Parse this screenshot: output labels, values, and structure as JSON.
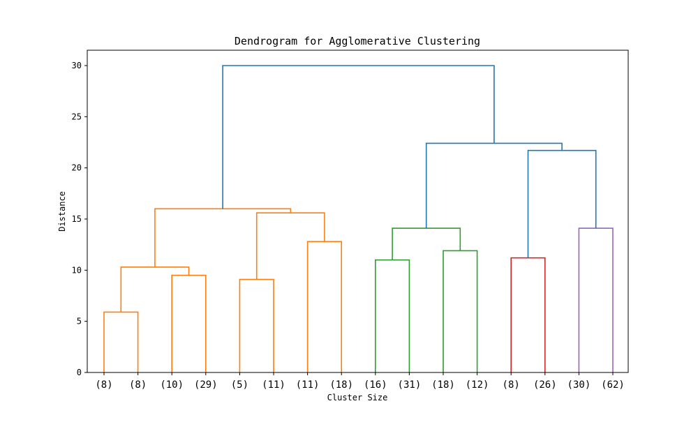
{
  "chart_data": {
    "type": "dendrogram",
    "title": "Dendrogram for Agglomerative Clustering",
    "xlabel": "Cluster Size",
    "ylabel": "Distance",
    "ylim": [
      0,
      31.5
    ],
    "yticks": [
      0,
      5,
      10,
      15,
      20,
      25,
      30
    ],
    "leaf_labels": [
      "(8)",
      "(8)",
      "(10)",
      "(29)",
      "(5)",
      "(11)",
      "(11)",
      "(18)",
      "(16)",
      "(31)",
      "(18)",
      "(12)",
      "(8)",
      "(26)",
      "(30)",
      "(62)"
    ],
    "colors": {
      "orange": "#ff7f0e",
      "green": "#2ca02c",
      "red": "#d62728",
      "purple": "#9467bd",
      "blue": "#1f77b4"
    },
    "links": [
      {
        "left": 0,
        "right": 1,
        "height": 5.9,
        "color": "orange"
      },
      {
        "left": 2,
        "right": 3,
        "height": 9.5,
        "color": "orange"
      },
      {
        "left": 16,
        "right": 17,
        "height": 10.3,
        "color": "orange"
      },
      {
        "left": 4,
        "right": 5,
        "height": 9.1,
        "color": "orange"
      },
      {
        "left": 6,
        "right": 7,
        "height": 12.8,
        "color": "orange"
      },
      {
        "left": 19,
        "right": 20,
        "height": 15.6,
        "color": "orange"
      },
      {
        "left": 18,
        "right": 21,
        "height": 16.0,
        "color": "orange"
      },
      {
        "left": 8,
        "right": 9,
        "height": 11.0,
        "color": "green"
      },
      {
        "left": 10,
        "right": 11,
        "height": 11.9,
        "color": "green"
      },
      {
        "left": 23,
        "right": 24,
        "height": 14.1,
        "color": "green"
      },
      {
        "left": 12,
        "right": 13,
        "height": 11.2,
        "color": "red"
      },
      {
        "left": 14,
        "right": 15,
        "height": 14.1,
        "color": "purple"
      },
      {
        "left": 26,
        "right": 27,
        "height": 21.7,
        "color": "blue"
      },
      {
        "left": 25,
        "right": 28,
        "height": 22.4,
        "color": "blue"
      },
      {
        "left": 22,
        "right": 29,
        "height": 30.0,
        "color": "blue"
      }
    ]
  }
}
